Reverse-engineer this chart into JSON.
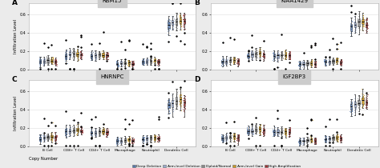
{
  "panels": [
    {
      "title": "RBM15",
      "label": "A"
    },
    {
      "title": "KIAA1429",
      "label": "B"
    },
    {
      "title": "HNRNPC",
      "label": "C"
    },
    {
      "title": "IGF2BP3",
      "label": "D"
    }
  ],
  "cell_types": [
    "B Cell",
    "CD8+ T Cell",
    "CD4+ T Cell",
    "Macrophage",
    "Neutrophil",
    "Dendritic Cell"
  ],
  "copy_number_types": [
    "Deep Deletion",
    "Arm-level Deletion",
    "Diploid/Normal",
    "Arm-level Gain",
    "High Amplification"
  ],
  "colors": [
    "#5577AA",
    "#99AACC",
    "#888888",
    "#CC9922",
    "#993333"
  ],
  "ylabel": "Infiltration Level",
  "background_color": "#ebebeb",
  "panel_bg": "#ffffff",
  "title_bg": "#cccccc",
  "grid_color": "#dddddd",
  "ylim": [
    0.0,
    0.72
  ],
  "yticks": [
    0.0,
    0.2,
    0.4,
    0.6
  ],
  "cell_spreads": {
    "B Cell": 0.022,
    "CD8+ T Cell": 0.028,
    "CD4+ T Cell": 0.025,
    "Macrophage": 0.018,
    "Neutrophil": 0.018,
    "Dendritic Cell": 0.045
  },
  "cell_medians": {
    "RBM15": {
      "B Cell": [
        0.088,
        0.09,
        0.1,
        0.102,
        0.09
      ],
      "CD8+ T Cell": [
        0.155,
        0.165,
        0.178,
        0.182,
        0.168
      ],
      "CD4+ T Cell": [
        0.148,
        0.152,
        0.16,
        0.162,
        0.152
      ],
      "Macrophage": [
        0.065,
        0.068,
        0.072,
        0.078,
        0.068
      ],
      "Neutrophil": [
        0.085,
        0.088,
        0.092,
        0.098,
        0.088
      ],
      "Dendritic Cell": [
        0.49,
        0.51,
        0.525,
        0.54,
        0.515
      ]
    },
    "KIAA1429": {
      "B Cell": [
        0.088,
        0.09,
        0.1,
        0.102,
        0.09
      ],
      "CD8+ T Cell": [
        0.155,
        0.165,
        0.178,
        0.182,
        0.168
      ],
      "CD4+ T Cell": [
        0.148,
        0.152,
        0.16,
        0.162,
        0.152
      ],
      "Macrophage": [
        0.055,
        0.06,
        0.068,
        0.072,
        0.06
      ],
      "Neutrophil": [
        0.085,
        0.088,
        0.092,
        0.098,
        0.088
      ],
      "Dendritic Cell": [
        0.46,
        0.48,
        0.51,
        0.525,
        0.495
      ]
    },
    "HNRNPC": {
      "B Cell": [
        0.088,
        0.09,
        0.1,
        0.102,
        0.09
      ],
      "CD8+ T Cell": [
        0.155,
        0.165,
        0.178,
        0.182,
        0.168
      ],
      "CD4+ T Cell": [
        0.138,
        0.148,
        0.158,
        0.16,
        0.148
      ],
      "Macrophage": [
        0.055,
        0.06,
        0.068,
        0.072,
        0.06
      ],
      "Neutrophil": [
        0.075,
        0.08,
        0.088,
        0.092,
        0.08
      ],
      "Dendritic Cell": [
        0.44,
        0.46,
        0.49,
        0.51,
        0.472
      ]
    },
    "IGF2BP3": {
      "B Cell": [
        0.088,
        0.09,
        0.1,
        0.102,
        0.09
      ],
      "CD8+ T Cell": [
        0.155,
        0.165,
        0.178,
        0.182,
        0.168
      ],
      "CD4+ T Cell": [
        0.148,
        0.152,
        0.16,
        0.162,
        0.152
      ],
      "Macrophage": [
        0.055,
        0.06,
        0.068,
        0.072,
        0.06
      ],
      "Neutrophil": [
        0.075,
        0.08,
        0.088,
        0.092,
        0.08
      ],
      "Dendritic Cell": [
        0.42,
        0.445,
        0.475,
        0.5,
        0.458
      ]
    }
  }
}
